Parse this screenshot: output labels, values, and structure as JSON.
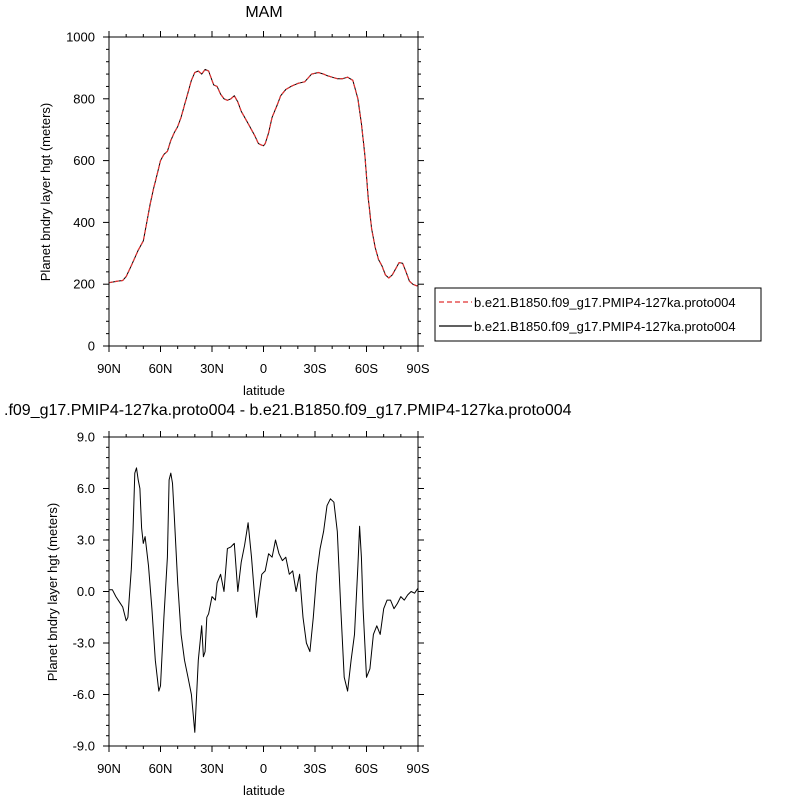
{
  "colors": {
    "control": "#e03030",
    "case": "#000000",
    "axis": "#000000"
  },
  "chart_data": [
    {
      "type": "line",
      "title": "MAM",
      "xlabel": "latitude",
      "ylabel": "Planet bndry layer hgt (meters)",
      "xlim": [
        90,
        -90
      ],
      "ylim": [
        0,
        1000
      ],
      "xticks": [
        90,
        60,
        30,
        0,
        -30,
        -60,
        -90
      ],
      "xtick_labels": [
        "90N",
        "60N",
        "30N",
        "0",
        "30S",
        "60S",
        "90S"
      ],
      "yticks": [
        0,
        200,
        400,
        600,
        800,
        1000
      ],
      "ytick_labels": [
        "0",
        "200",
        "400",
        "600",
        "800",
        "1000"
      ],
      "legend": "outside-right",
      "series": [
        {
          "name": "b.e21.B1850.f09_g17.PMIP4-127ka.proto004",
          "style": "dashed",
          "x": [
            90,
            85,
            82,
            80,
            77,
            73,
            70,
            68,
            66,
            64,
            62,
            60,
            58,
            56,
            54,
            52,
            50,
            48,
            46,
            44,
            42,
            40,
            38,
            36,
            34,
            32,
            30,
            29,
            27,
            25,
            23,
            21,
            19,
            17,
            15,
            13,
            11,
            9,
            7,
            5,
            3,
            1,
            0,
            -1,
            -3,
            -5,
            -8,
            -10,
            -13,
            -16,
            -20,
            -24,
            -28,
            -32,
            -35,
            -37,
            -40,
            -43,
            -46,
            -49,
            -52,
            -55,
            -57,
            -59,
            -61,
            -63,
            -65,
            -67,
            -69,
            -71,
            -73,
            -75,
            -77,
            -79,
            -81,
            -83,
            -85,
            -87,
            -89,
            -90
          ],
          "y": [
            205,
            210,
            212,
            225,
            260,
            310,
            340,
            400,
            460,
            510,
            555,
            600,
            620,
            630,
            665,
            690,
            710,
            740,
            780,
            820,
            860,
            885,
            890,
            880,
            895,
            890,
            860,
            845,
            840,
            815,
            800,
            795,
            800,
            810,
            790,
            760,
            740,
            720,
            700,
            680,
            655,
            650,
            648,
            655,
            690,
            740,
            780,
            810,
            830,
            840,
            850,
            855,
            880,
            885,
            880,
            875,
            870,
            865,
            865,
            870,
            860,
            800,
            720,
            620,
            480,
            380,
            320,
            280,
            260,
            230,
            220,
            230,
            250,
            270,
            268,
            240,
            210,
            200,
            195,
            195
          ]
        },
        {
          "name": "b.e21.B1850.f09_g17.PMIP4-127ka.proto004",
          "style": "solid",
          "x": [
            90,
            85,
            82,
            80,
            77,
            73,
            70,
            68,
            66,
            64,
            62,
            60,
            58,
            56,
            54,
            52,
            50,
            48,
            46,
            44,
            42,
            40,
            38,
            36,
            34,
            32,
            30,
            29,
            27,
            25,
            23,
            21,
            19,
            17,
            15,
            13,
            11,
            9,
            7,
            5,
            3,
            1,
            0,
            -1,
            -3,
            -5,
            -8,
            -10,
            -13,
            -16,
            -20,
            -24,
            -28,
            -32,
            -35,
            -37,
            -40,
            -43,
            -46,
            -49,
            -52,
            -55,
            -57,
            -59,
            -61,
            -63,
            -65,
            -67,
            -69,
            -71,
            -73,
            -75,
            -77,
            -79,
            -81,
            -83,
            -85,
            -87,
            -89,
            -90
          ],
          "y": [
            205,
            210,
            212,
            225,
            260,
            310,
            340,
            400,
            460,
            510,
            555,
            600,
            620,
            630,
            665,
            690,
            710,
            740,
            780,
            820,
            860,
            885,
            890,
            880,
            895,
            890,
            860,
            845,
            840,
            815,
            800,
            795,
            800,
            810,
            790,
            760,
            740,
            720,
            700,
            680,
            655,
            650,
            648,
            655,
            690,
            740,
            780,
            810,
            830,
            840,
            850,
            855,
            880,
            885,
            880,
            875,
            870,
            865,
            865,
            870,
            860,
            800,
            720,
            620,
            480,
            380,
            320,
            280,
            260,
            230,
            220,
            230,
            250,
            270,
            268,
            240,
            210,
            200,
            195,
            195
          ]
        }
      ]
    },
    {
      "type": "line",
      "title": ".f09_g17.PMIP4-127ka.proto004 - b.e21.B1850.f09_g17.PMIP4-127ka.proto004",
      "xlabel": "latitude",
      "ylabel": "Planet bndry layer hgt (meters)",
      "xlim": [
        90,
        -90
      ],
      "ylim": [
        -9,
        9
      ],
      "xticks": [
        90,
        60,
        30,
        0,
        -30,
        -60,
        -90
      ],
      "xtick_labels": [
        "90N",
        "60N",
        "30N",
        "0",
        "30S",
        "60S",
        "90S"
      ],
      "yticks": [
        -9,
        -6,
        -3,
        0,
        3,
        6,
        9
      ],
      "ytick_labels": [
        "-9.0",
        "-6.0",
        "-3.0",
        "0.0",
        "3.0",
        "6.0",
        "9.0"
      ],
      "series": [
        {
          "style": "solid",
          "x": [
            90,
            88,
            86,
            84,
            82,
            80,
            79,
            77,
            76,
            75,
            74,
            73,
            72,
            71,
            70,
            69,
            67,
            65,
            63,
            61,
            60,
            58,
            56,
            55,
            54,
            53,
            52,
            50,
            48,
            46,
            44,
            42,
            40,
            38,
            36,
            35,
            34,
            33,
            32,
            30,
            28,
            27,
            25,
            23,
            21,
            19,
            17,
            15,
            13,
            11,
            9,
            7,
            5,
            4,
            3,
            1,
            -1,
            -3,
            -5,
            -7,
            -9,
            -11,
            -13,
            -15,
            -17,
            -19,
            -21,
            -23,
            -25,
            -27,
            -29,
            -31,
            -33,
            -35,
            -37,
            -39,
            -41,
            -43,
            -45,
            -47,
            -49,
            -51,
            -53,
            -55,
            -56,
            -57,
            -58,
            -60,
            -62,
            -64,
            -66,
            -68,
            -70,
            -72,
            -74,
            -76,
            -78,
            -80,
            -82,
            -84,
            -86,
            -88,
            -90
          ],
          "y": [
            0.1,
            0.1,
            -0.3,
            -0.6,
            -0.9,
            -1.7,
            -1.5,
            1.3,
            3.5,
            6.9,
            7.2,
            6.5,
            6.0,
            3.7,
            2.8,
            3.2,
            1.5,
            -1.0,
            -4.0,
            -5.8,
            -5.5,
            -1.5,
            2.0,
            6.5,
            6.9,
            6.3,
            4.5,
            0.5,
            -2.5,
            -4.0,
            -5.0,
            -6.0,
            -8.2,
            -4.0,
            -2.0,
            -3.8,
            -3.5,
            -1.5,
            -1.3,
            -0.3,
            -0.5,
            0.5,
            1.0,
            0.0,
            2.5,
            2.6,
            2.8,
            0.0,
            1.7,
            2.7,
            4.0,
            2.0,
            -0.5,
            -1.5,
            -0.5,
            1.0,
            1.2,
            2.2,
            2.0,
            3.0,
            2.2,
            1.8,
            2.0,
            1.0,
            1.2,
            0.0,
            1.0,
            -1.5,
            -3.0,
            -3.5,
            -1.5,
            1.0,
            2.5,
            3.5,
            5.0,
            5.4,
            5.2,
            3.5,
            -1.0,
            -5.0,
            -5.8,
            -4.0,
            -2.5,
            1.5,
            3.8,
            2.0,
            -1.0,
            -5.0,
            -4.5,
            -2.5,
            -2.0,
            -2.5,
            -1.0,
            -0.5,
            -0.5,
            -1.0,
            -0.7,
            -0.3,
            -0.5,
            -0.2,
            0.0,
            -0.1,
            0.2
          ]
        }
      ]
    }
  ]
}
